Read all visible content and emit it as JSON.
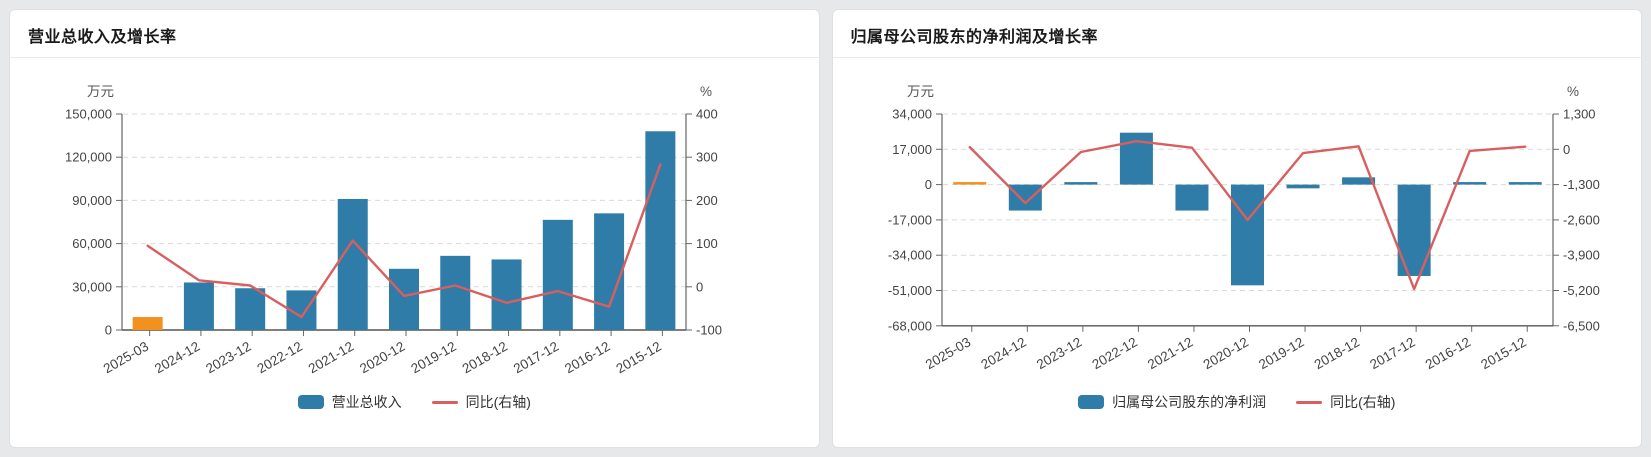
{
  "theme": {
    "page_background": "#e6e8e9",
    "card_background": "#ffffff",
    "grid_line_color": "#d9d9d9",
    "axis_color": "#666666",
    "text_color": "#444444",
    "bar_color": "#2e7ca7",
    "first_bar_color": "#f2911e",
    "line_color": "#d95f5f"
  },
  "cards": [
    {
      "title": "营业总收入及增长率"
    },
    {
      "title": "归属母公司股东的净利润及增长率"
    }
  ],
  "chart_data": [
    {
      "type": "bar",
      "title": "营业总收入及增长率",
      "categories": [
        "2025-03",
        "2024-12",
        "2023-12",
        "2022-12",
        "2021-12",
        "2020-12",
        "2019-12",
        "2018-12",
        "2017-12",
        "2016-12",
        "2015-12"
      ],
      "series": [
        {
          "name": "营业总收入",
          "type": "bar",
          "axis": "left",
          "color": "#2e7ca7",
          "first_color": "#f2911e",
          "values": [
            9000,
            33000,
            29000,
            27500,
            91000,
            42500,
            51500,
            49000,
            76500,
            81000,
            138000
          ]
        },
        {
          "name": "同比(右轴)",
          "type": "line",
          "axis": "right",
          "color": "#d95f5f",
          "values": [
            95,
            15,
            3,
            -70,
            107,
            -21,
            3,
            -37,
            -10,
            -46,
            283
          ]
        }
      ],
      "left_axis": {
        "name": "万元",
        "min": 0,
        "max": 150000,
        "tick_labels": [
          "150,000",
          "120,000",
          "90,000",
          "60,000",
          "30,000",
          "0"
        ]
      },
      "right_axis": {
        "name": "%",
        "min": -100,
        "max": 400,
        "tick_labels": [
          "400",
          "300",
          "200",
          "100",
          "0",
          "-100"
        ]
      },
      "grid": true,
      "legend_position": "bottom"
    },
    {
      "type": "bar",
      "title": "归属母公司股东的净利润及增长率",
      "categories": [
        "2025-03",
        "2024-12",
        "2023-12",
        "2022-12",
        "2021-12",
        "2020-12",
        "2019-12",
        "2018-12",
        "2017-12",
        "2016-12",
        "2015-12"
      ],
      "series": [
        {
          "name": "归属母公司股东的净利润",
          "type": "bar",
          "axis": "left",
          "color": "#2e7ca7",
          "first_color": "#f2911e",
          "values": [
            150,
            -12500,
            400,
            25000,
            -12500,
            -48500,
            -1800,
            3500,
            -44000,
            500,
            900
          ]
        },
        {
          "name": "同比(右轴)",
          "type": "line",
          "axis": "right",
          "color": "#d95f5f",
          "values": [
            80,
            -1980,
            -100,
            300,
            60,
            -2600,
            -140,
            110,
            -5150,
            -60,
            95
          ]
        }
      ],
      "left_axis": {
        "name": "万元",
        "min": -68000,
        "max": 34000,
        "tick_labels": [
          "34,000",
          "17,000",
          "0",
          "-17,000",
          "-34,000",
          "-51,000",
          "-68,000"
        ]
      },
      "right_axis": {
        "name": "%",
        "min": -6500,
        "max": 1300,
        "tick_labels": [
          "1,300",
          "0",
          "-1,300",
          "-2,600",
          "-3,900",
          "-5,200",
          "-6,500"
        ]
      },
      "grid": true,
      "legend_position": "bottom"
    }
  ]
}
